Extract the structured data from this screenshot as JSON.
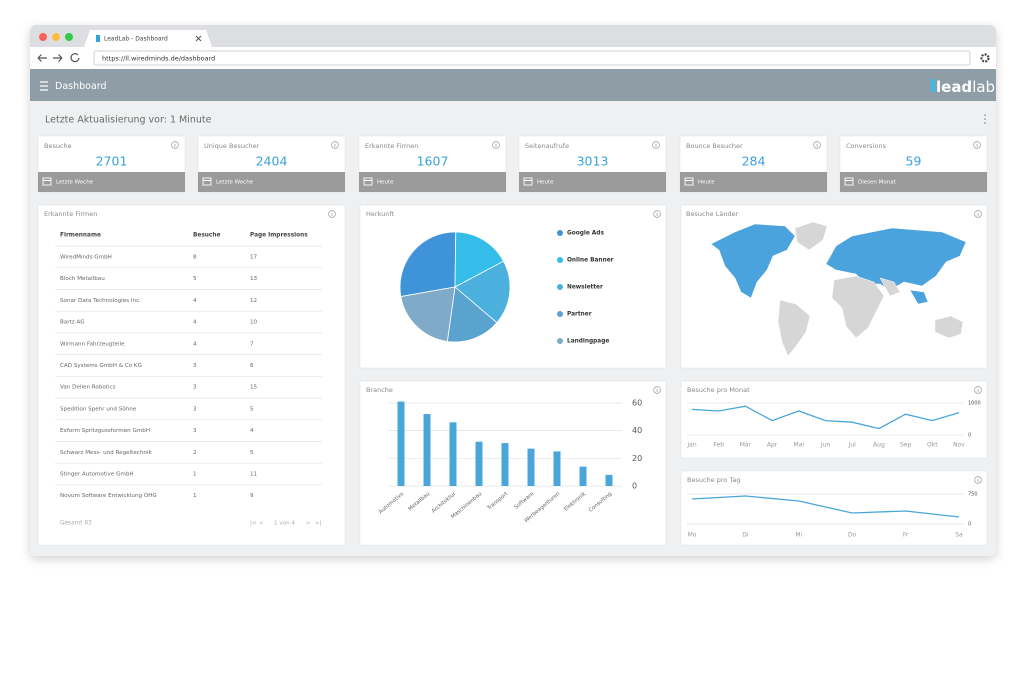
{
  "browser": {
    "tab": "LeadLab - Dashboard",
    "url": "https://ll.wiredminds.de/dashboard"
  },
  "header": {
    "title": "Dashboard",
    "logo": [
      "lead",
      "lab"
    ]
  },
  "status": "Letzte Aktualisierung vor: 1 Minute",
  "kpis": [
    {
      "title": "Besuche",
      "value": 2701,
      "period": "Letzte Woche"
    },
    {
      "title": "Unique Besucher",
      "value": 2404,
      "period": "Letzte Woche"
    },
    {
      "title": "Erkannte Firmen",
      "value": 1607,
      "period": "Heute"
    },
    {
      "title": "Seitenaufrufe",
      "value": 3013,
      "period": "Heute"
    },
    {
      "title": "Bounce Besucher",
      "value": 284,
      "period": "Heute"
    },
    {
      "title": "Conversions",
      "value": 59,
      "period": "Diesen Monat"
    }
  ],
  "companies": {
    "title": "Erkannte Firmen",
    "columns": [
      "Firmenname",
      "Besuche",
      "Page Impressions"
    ],
    "rows": [
      [
        "WiredMinds GmbH",
        8,
        17
      ],
      [
        "Bloch Metallbau",
        5,
        13
      ],
      [
        "Sonar Data Technologies Inc.",
        4,
        12
      ],
      [
        "Bartz AG",
        4,
        10
      ],
      [
        "Wirmann Fahrzeugteile",
        4,
        7
      ],
      [
        "CAD Systems GmbH & Co KG",
        3,
        6
      ],
      [
        "Van Dellen Robotics",
        3,
        15
      ],
      [
        "Spedition Spehr und Söhne",
        3,
        5
      ],
      [
        "Exform Spritzgussformen GmbH",
        3,
        4
      ],
      [
        "Schwarz Mess- und Regeltechnik",
        2,
        5
      ],
      [
        "Stinger Automotive GmbH",
        1,
        11
      ],
      [
        "Novum Software Entwicklung OHG",
        1,
        9
      ]
    ],
    "total": "Gesamt 83",
    "pager": [
      "|<",
      "<",
      "1 von 4",
      ">",
      ">|"
    ]
  },
  "origin": {
    "type": "pie",
    "title": "Herkunft",
    "categories": [
      "Google Ads",
      "Online Banner",
      "Newsletter",
      "Partner",
      "Landingpage"
    ],
    "values": [
      28,
      17,
      19,
      16,
      20
    ],
    "colors": [
      "#3f94d9",
      "#33bde8",
      "#4cb0df",
      "#5aa3cf",
      "#7fabc9"
    ]
  },
  "countries": {
    "title": "Besuche Länder"
  },
  "industry": {
    "type": "bar",
    "title": "Branche",
    "categories": [
      "Automotive",
      "Metallbau",
      "Architektur",
      "Maschinenbau",
      "Transport",
      "Software",
      "Werbeagenturen",
      "Elektronik",
      "Consulting"
    ],
    "values": [
      61,
      52,
      46,
      32,
      31,
      27,
      25,
      14,
      8
    ],
    "color": "#4aa6da",
    "ylim": [
      0,
      62
    ],
    "yticks": [
      0,
      20,
      40,
      60
    ],
    "grid": true
  },
  "monthly": {
    "type": "line",
    "title": "Besuche pro Monat",
    "categories": [
      "Jan",
      "Feb",
      "Mär",
      "Apr",
      "Mai",
      "Jun",
      "Jul",
      "Aug",
      "Sep",
      "Okt",
      "Nov"
    ],
    "values": [
      800,
      750,
      900,
      450,
      750,
      450,
      400,
      200,
      650,
      450,
      700
    ],
    "color": "#4aa6da",
    "ylim": [
      -150,
      1150
    ],
    "yticks": [
      0,
      1000
    ],
    "grid": true
  },
  "daily": {
    "type": "line",
    "title": "Besuche pro Tag",
    "categories": [
      "Mo",
      "Di",
      "Mi",
      "Do",
      "Fr",
      "Sa"
    ],
    "values": [
      625,
      700,
      575,
      275,
      325,
      175
    ],
    "color": "#4aa6da",
    "ylim": [
      -100,
      850
    ],
    "yticks": [
      0,
      750
    ],
    "grid": true
  }
}
